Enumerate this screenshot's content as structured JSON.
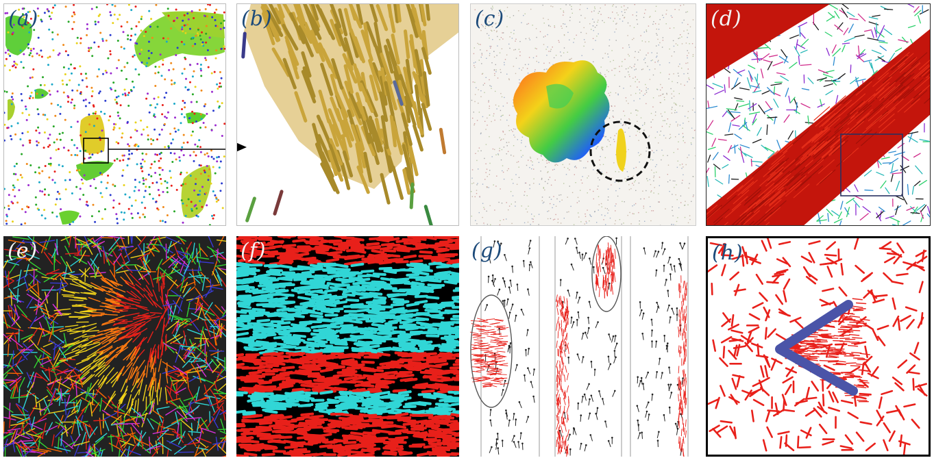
{
  "figure": {
    "panels": [
      {
        "id": "a",
        "label": "(a)"
      },
      {
        "id": "b",
        "label": "(b)"
      },
      {
        "id": "c",
        "label": "(c)"
      },
      {
        "id": "d",
        "label": "(d)"
      },
      {
        "id": "e",
        "label": "(e)"
      },
      {
        "id": "f",
        "label": "(f)"
      },
      {
        "id": "g",
        "label": "(g)"
      },
      {
        "id": "h",
        "label": "(h)"
      }
    ]
  },
  "colors": {
    "label": "#1c4a7a",
    "rod_red": "#e8201a",
    "rod_cyan": "#31d6d6",
    "wedge_blue": "#4a54a8",
    "dark_red": "#c41a10"
  }
}
